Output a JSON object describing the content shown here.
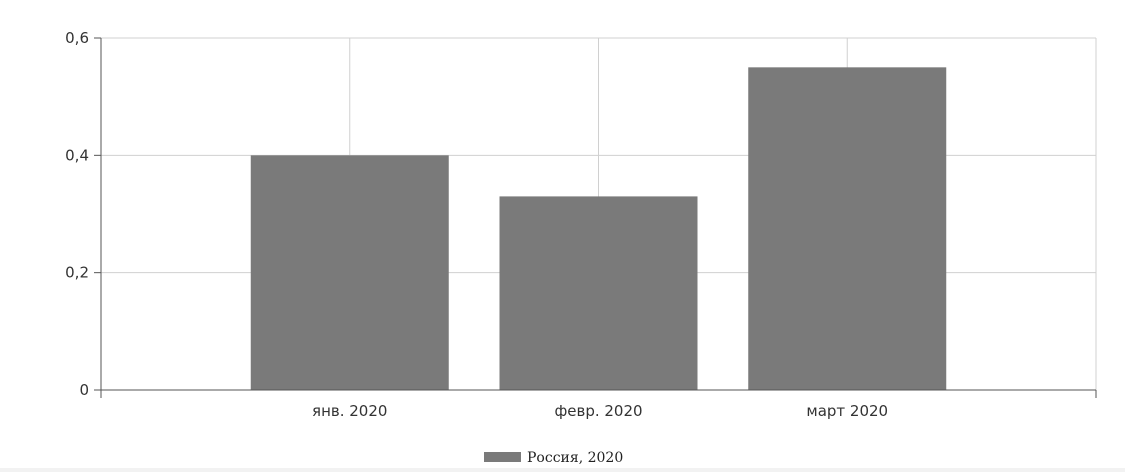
{
  "chart_data": {
    "type": "bar",
    "categories": [
      "янв. 2020",
      "февр. 2020",
      "март 2020"
    ],
    "series": [
      {
        "name": "Россия, 2020",
        "values": [
          0.4,
          0.33,
          0.55
        ],
        "color": "#7a7a7a"
      }
    ],
    "ylim": [
      0,
      0.6
    ],
    "yticks": [
      0,
      0.2,
      0.4,
      0.6
    ],
    "ytick_labels": [
      "0",
      "0,2",
      "0,4",
      "0,6"
    ],
    "title": "",
    "xlabel": "",
    "ylabel": "",
    "grid": true,
    "legend": "bottom-center"
  }
}
